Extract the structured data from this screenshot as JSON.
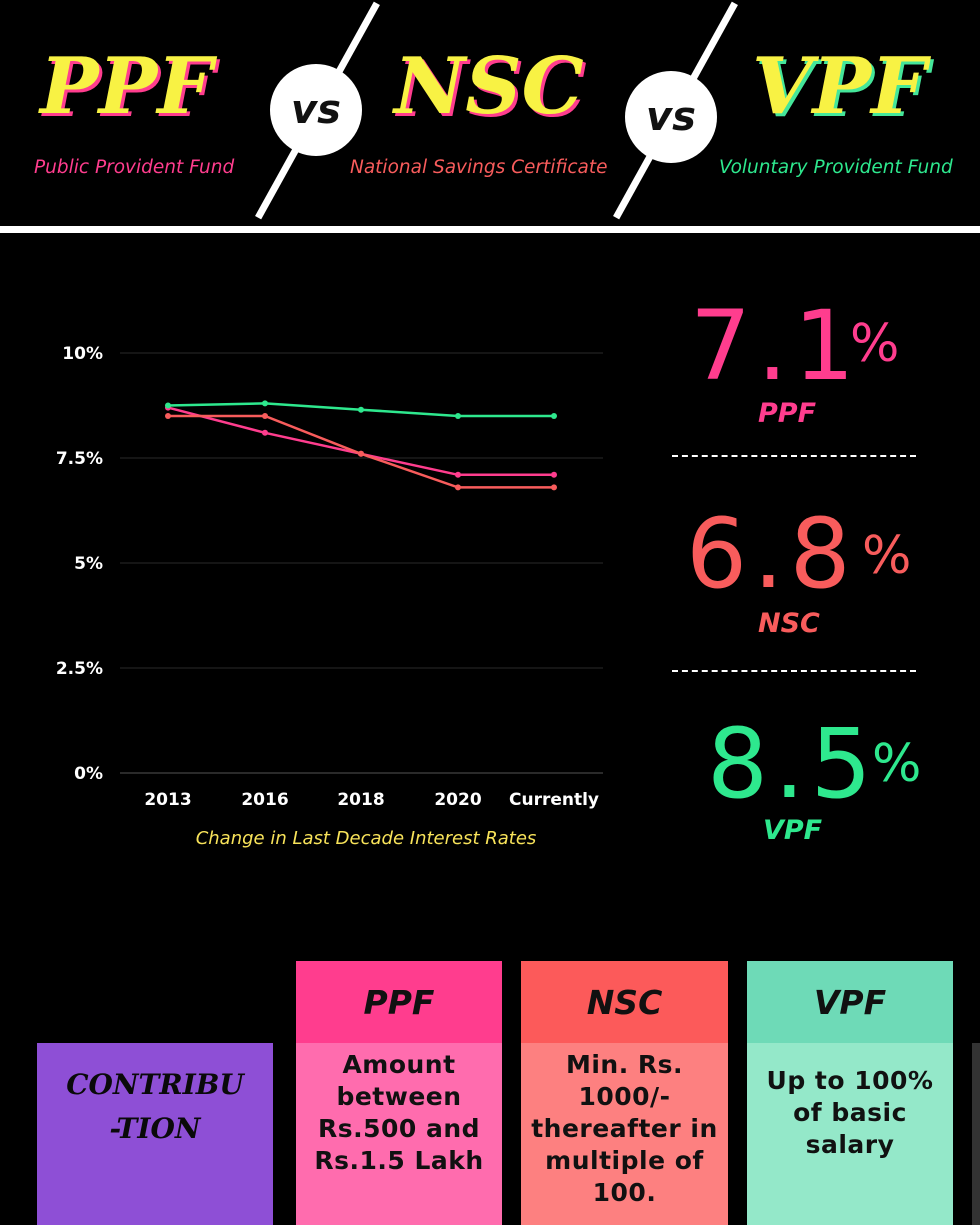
{
  "header": {
    "titles": [
      {
        "short": "PPF",
        "full": "Public Provident Fund"
      },
      {
        "short": "NSC",
        "full": "National Savings Certificate"
      },
      {
        "short": "VPF",
        "full": "Voluntary Provident Fund"
      }
    ],
    "vs_label": "vs"
  },
  "colors": {
    "ppf": "#ff3d8e",
    "nsc": "#f85c5c",
    "vpf": "#2ee88e",
    "title_yellow": "#f8f244",
    "table_ppf_header": "#ff3d8e",
    "table_ppf_body": "#ff6cae",
    "table_nsc_header": "#fc5a5a",
    "table_nsc_body": "#fd8080",
    "table_vpf_header": "#6edab7",
    "table_vpf_body": "#94e8c9",
    "table_row_header": "#8e4fd6"
  },
  "chart_data": {
    "type": "line",
    "title": "",
    "caption": "Change in Last Decade Interest Rates",
    "categories": [
      "2013",
      "2016",
      "2018",
      "2020",
      "Currently"
    ],
    "y_ticks": [
      "10%",
      "7.5%",
      "5%",
      "2.5%",
      "0%"
    ],
    "ylim": [
      0,
      10
    ],
    "grid": true,
    "series": [
      {
        "key": "ppf",
        "values": [
          8.7,
          8.1,
          7.6,
          7.1,
          7.1
        ]
      },
      {
        "key": "nsc",
        "values": [
          8.5,
          8.5,
          7.6,
          6.8,
          6.8
        ]
      },
      {
        "key": "vpf",
        "values": [
          8.75,
          8.8,
          8.65,
          8.5,
          8.5
        ]
      }
    ]
  },
  "rates": {
    "ppf": {
      "value": "7.1",
      "pct": "%",
      "label": "PPF"
    },
    "nsc": {
      "value": "6.8",
      "pct": "%",
      "label": "NSC"
    },
    "vpf": {
      "value": "8.5",
      "pct": "%",
      "label": "VPF"
    }
  },
  "table": {
    "headers": [
      "PPF",
      "NSC",
      "VPF"
    ],
    "row_header": "CONTRIBU -TION",
    "row_header_lines": [
      "CONTRIBU",
      "-TION"
    ],
    "cells": [
      [
        "Amount",
        "between",
        "Rs.500 and",
        "Rs.1.5 Lakh"
      ],
      [
        "Min. Rs.",
        "1000/-",
        "thereafter in",
        "multiple of",
        "100."
      ],
      [
        "Up to 100%",
        "of basic",
        "salary"
      ]
    ]
  }
}
